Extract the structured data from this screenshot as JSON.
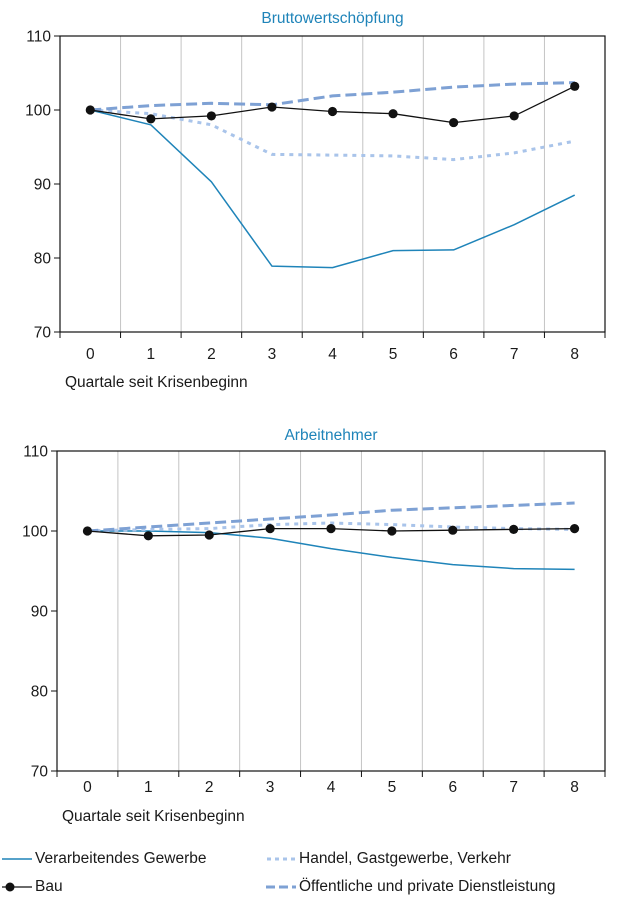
{
  "colors": {
    "verarbeitend": "#1f84b9",
    "bau": "#111111",
    "handel": "#a9c4ea",
    "dienst": "#7ea1d4",
    "title": "#1f84b9",
    "grid": "#c4c4c4",
    "axis": "#111111"
  },
  "legend": {
    "items": [
      {
        "key": "verarbeitend",
        "label": "Verarbeitendes Gewerbe",
        "style": "solid"
      },
      {
        "key": "handel",
        "label": "Handel, Gastgewerbe, Verkehr",
        "style": "dotted"
      },
      {
        "key": "bau",
        "label": "Bau",
        "style": "marker"
      },
      {
        "key": "dienst",
        "label": "Öffentliche und private Dienstleistung",
        "style": "dashed"
      }
    ]
  },
  "chart_data": [
    {
      "type": "line",
      "title": "Bruttowertschöpfung",
      "xlabel": "Quartale seit Krisenbeginn",
      "ylabel": "",
      "x": [
        0,
        1,
        2,
        3,
        4,
        5,
        6,
        7,
        8
      ],
      "xlim": [
        -0.5,
        8.5
      ],
      "ylim": [
        70,
        110
      ],
      "yticks": [
        70,
        80,
        90,
        100,
        110
      ],
      "grid": "vertical",
      "series": [
        {
          "key": "verarbeitend",
          "name": "Verarbeitendes Gewerbe",
          "values": [
            100,
            98,
            90.3,
            78.9,
            78.7,
            81,
            81.1,
            84.5,
            88.5
          ]
        },
        {
          "key": "handel",
          "name": "Handel, Gastgewerbe, Verkehr",
          "values": [
            100,
            99.5,
            98,
            94,
            93.9,
            93.8,
            93.3,
            94.2,
            95.8
          ]
        },
        {
          "key": "dienst",
          "name": "Öffentliche und private Dienstleistung",
          "values": [
            100,
            100.6,
            100.9,
            100.7,
            101.9,
            102.4,
            103.1,
            103.5,
            103.7
          ]
        },
        {
          "key": "bau",
          "name": "Bau",
          "values": [
            100,
            98.8,
            99.2,
            100.4,
            99.8,
            99.5,
            98.3,
            99.2,
            103.2
          ]
        }
      ]
    },
    {
      "type": "line",
      "title": "Arbeitnehmer",
      "xlabel": "Quartale seit Krisenbeginn",
      "ylabel": "",
      "x": [
        0,
        1,
        2,
        3,
        4,
        5,
        6,
        7,
        8
      ],
      "xlim": [
        -0.5,
        8.5
      ],
      "ylim": [
        70,
        110
      ],
      "yticks": [
        70,
        80,
        90,
        100,
        110
      ],
      "grid": "vertical",
      "series": [
        {
          "key": "verarbeitend",
          "name": "Verarbeitendes Gewerbe",
          "values": [
            100,
            100,
            99.8,
            99.1,
            97.8,
            96.7,
            95.8,
            95.3,
            95.2
          ]
        },
        {
          "key": "handel",
          "name": "Handel, Gastgewerbe, Verkehr",
          "values": [
            100,
            100.2,
            100.3,
            100.8,
            101,
            100.8,
            100.5,
            100.3,
            100.2
          ]
        },
        {
          "key": "dienst",
          "name": "Öffentliche und private Dienstleistung",
          "values": [
            100,
            100.5,
            101,
            101.5,
            102,
            102.6,
            102.9,
            103.2,
            103.5
          ]
        },
        {
          "key": "bau",
          "name": "Bau",
          "values": [
            100,
            99.4,
            99.5,
            100.3,
            100.3,
            100,
            100.1,
            100.2,
            100.3
          ]
        }
      ]
    }
  ]
}
